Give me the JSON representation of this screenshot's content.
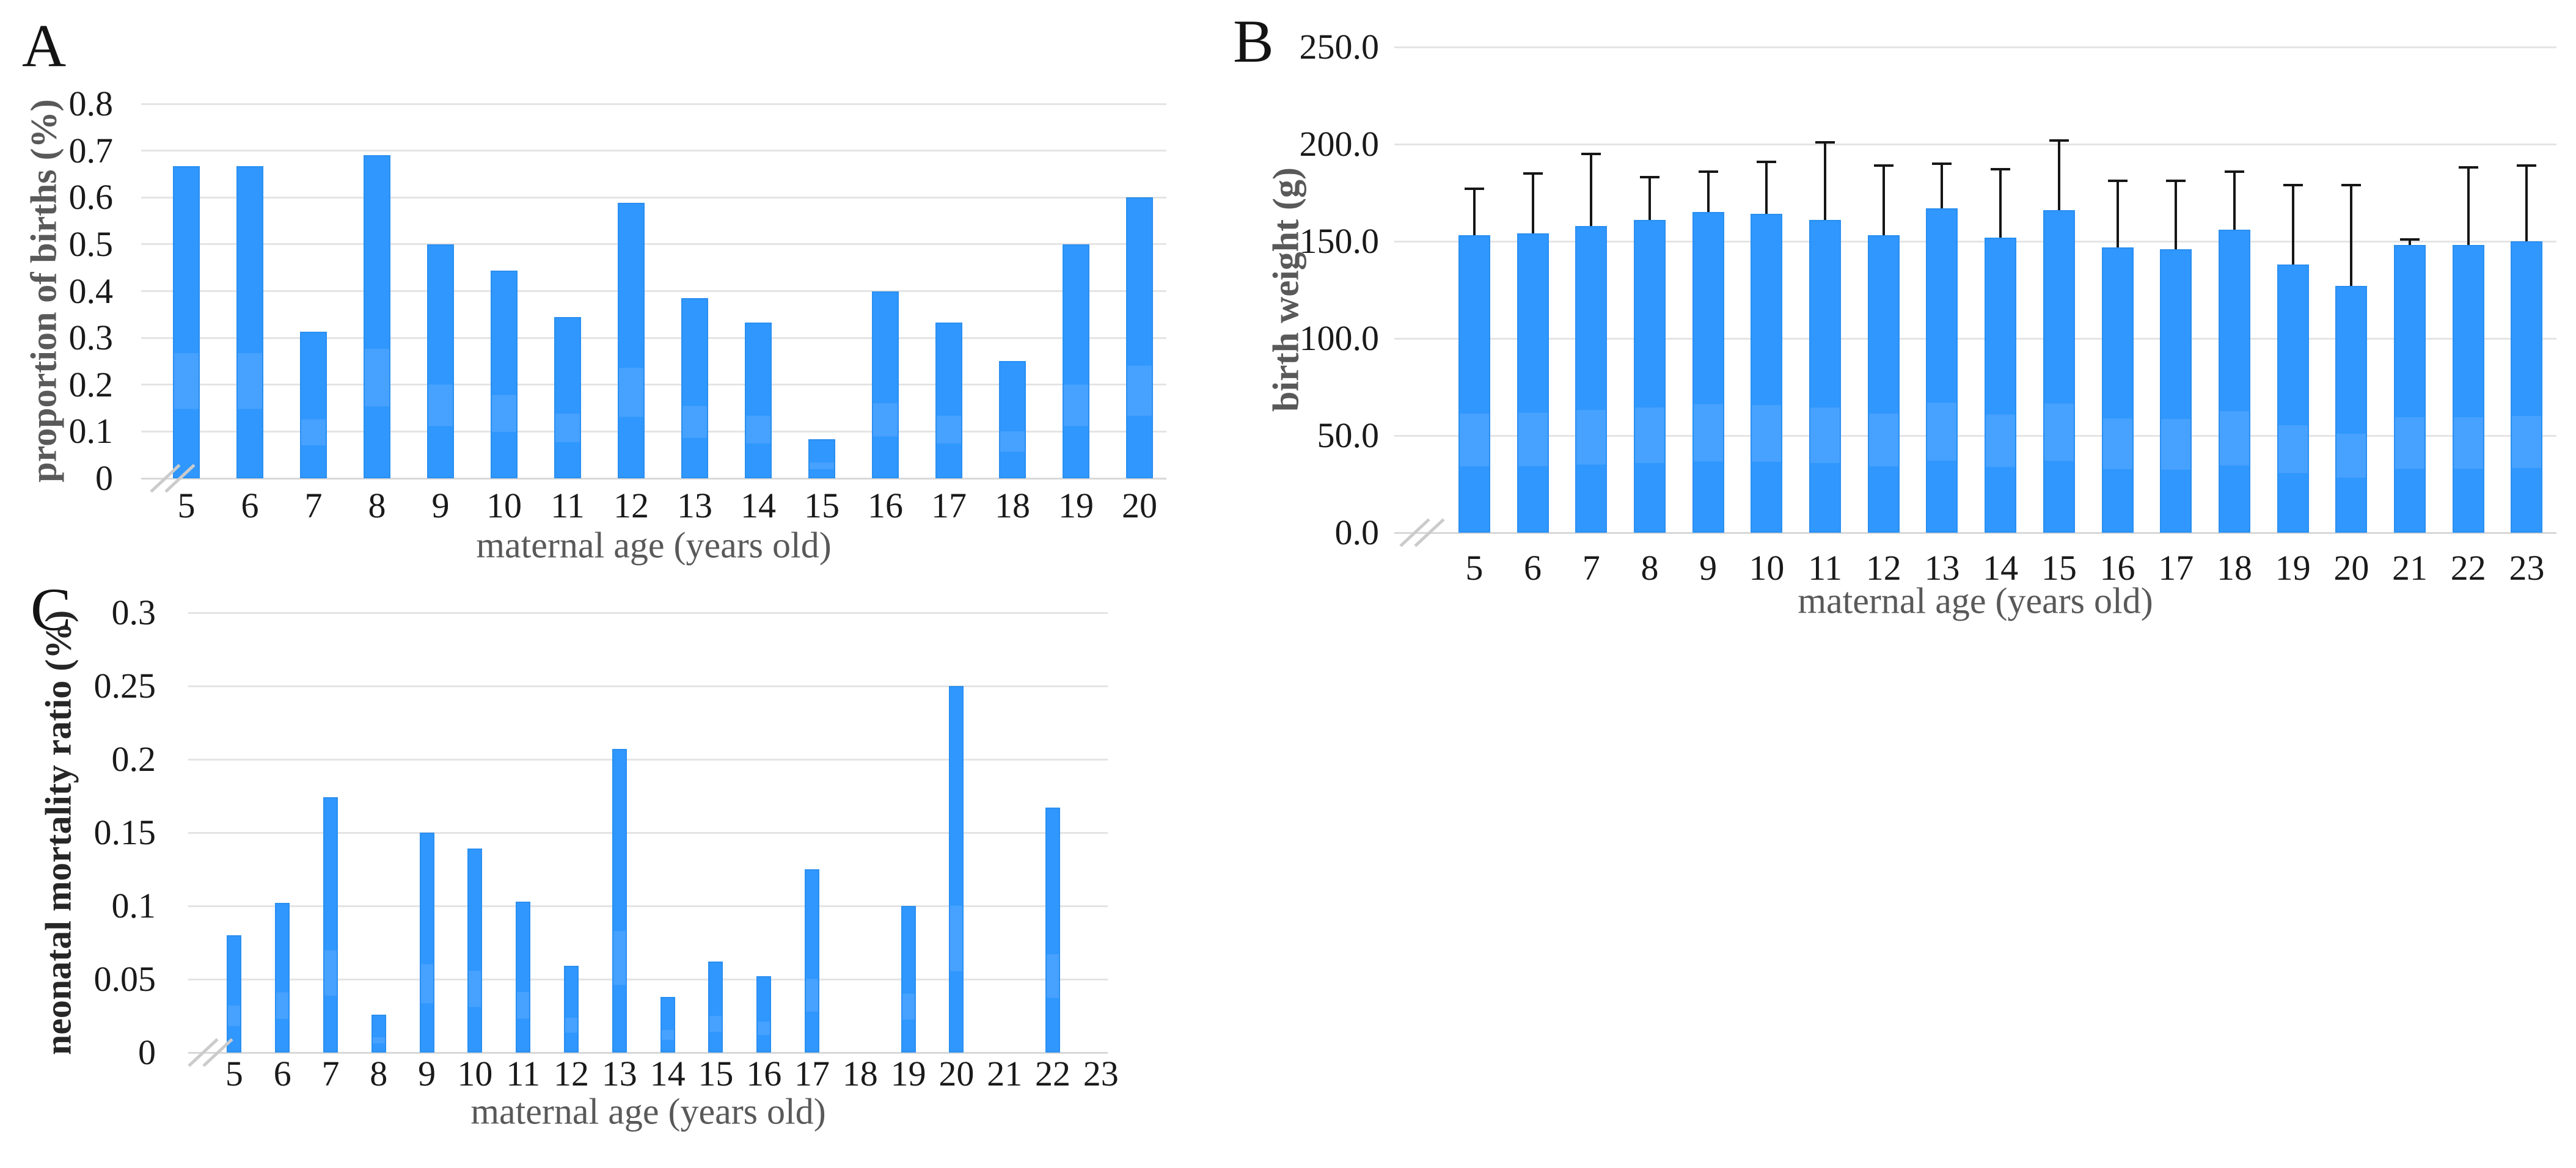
{
  "figure": {
    "background": "#ffffff",
    "panel_letters": [
      "A",
      "B",
      "C"
    ]
  },
  "colors": {
    "bar_fill": "#2f97fd",
    "bar_band": "#47a1fe",
    "bar_edge": "#2a8ff0",
    "gridline": "#e4e4e4",
    "axis_line": "#d8d8d8",
    "error_bar": "#161616",
    "tick_text": "#1a1a1a",
    "axis_label_text": "#595959"
  },
  "chart_data": [
    {
      "panel": "A",
      "type": "bar",
      "title": "",
      "xlabel": "maternal age (years old)",
      "ylabel": "proportion of births (%)",
      "categories": [
        "5",
        "6",
        "7",
        "8",
        "9",
        "10",
        "11",
        "12",
        "13",
        "14",
        "15",
        "16",
        "17",
        "18",
        "19",
        "20"
      ],
      "values": [
        0.667,
        0.667,
        0.313,
        0.69,
        0.5,
        0.444,
        0.345,
        0.588,
        0.385,
        0.333,
        0.083,
        0.4,
        0.333,
        0.25,
        0.5,
        0.6
      ],
      "ylim": [
        0,
        0.8
      ],
      "ytick_labels": [
        "0.8",
        "0.7",
        "0.6",
        "0.5",
        "0.4",
        "0.3",
        "0.2",
        "0.1",
        "0"
      ],
      "grid": true,
      "legend": "none",
      "axis_break_at_zero": true
    },
    {
      "panel": "B",
      "type": "bar",
      "title": "",
      "xlabel": "maternal age (years old)",
      "ylabel": "birth weight (g)",
      "categories": [
        "5",
        "6",
        "7",
        "8",
        "9",
        "10",
        "11",
        "12",
        "13",
        "14",
        "15",
        "16",
        "17",
        "18",
        "19",
        "20",
        "21",
        "22",
        "23"
      ],
      "values": [
        153,
        154,
        158,
        161,
        165,
        164,
        161,
        153,
        167,
        152,
        166,
        147,
        146,
        156,
        138,
        127,
        148,
        148,
        150
      ],
      "errors_plus": [
        24,
        31,
        37,
        22,
        21,
        27,
        40,
        36,
        23,
        35,
        36,
        34,
        35,
        30,
        41,
        52,
        3,
        40,
        39
      ],
      "ylim": [
        0,
        250
      ],
      "ytick_labels": [
        "250.0",
        "200.0",
        "150.0",
        "100.0",
        "50.0",
        "0.0"
      ],
      "grid": true,
      "legend": "none",
      "axis_break_at_zero": true
    },
    {
      "panel": "C",
      "type": "bar",
      "title": "",
      "xlabel": "maternal age (years old)",
      "ylabel": "neonatal mortality ratio (%)",
      "categories": [
        "5",
        "6",
        "7",
        "8",
        "9",
        "10",
        "11",
        "12",
        "13",
        "14",
        "15",
        "16",
        "17",
        "18",
        "19",
        "20",
        "21",
        "22",
        "23"
      ],
      "values": [
        0.08,
        0.102,
        0.174,
        0.026,
        0.15,
        0.139,
        0.103,
        0.059,
        0.207,
        0.038,
        0.062,
        0.052,
        0.125,
        0,
        0.1,
        0.25,
        0,
        0.167,
        0
      ],
      "ylim": [
        0,
        0.3
      ],
      "ytick_labels": [
        "0.3",
        "0.25",
        "0.2",
        "0.15",
        "0.1",
        "0.05",
        "0"
      ],
      "grid": true,
      "legend": "none",
      "axis_break_at_zero": true
    }
  ]
}
